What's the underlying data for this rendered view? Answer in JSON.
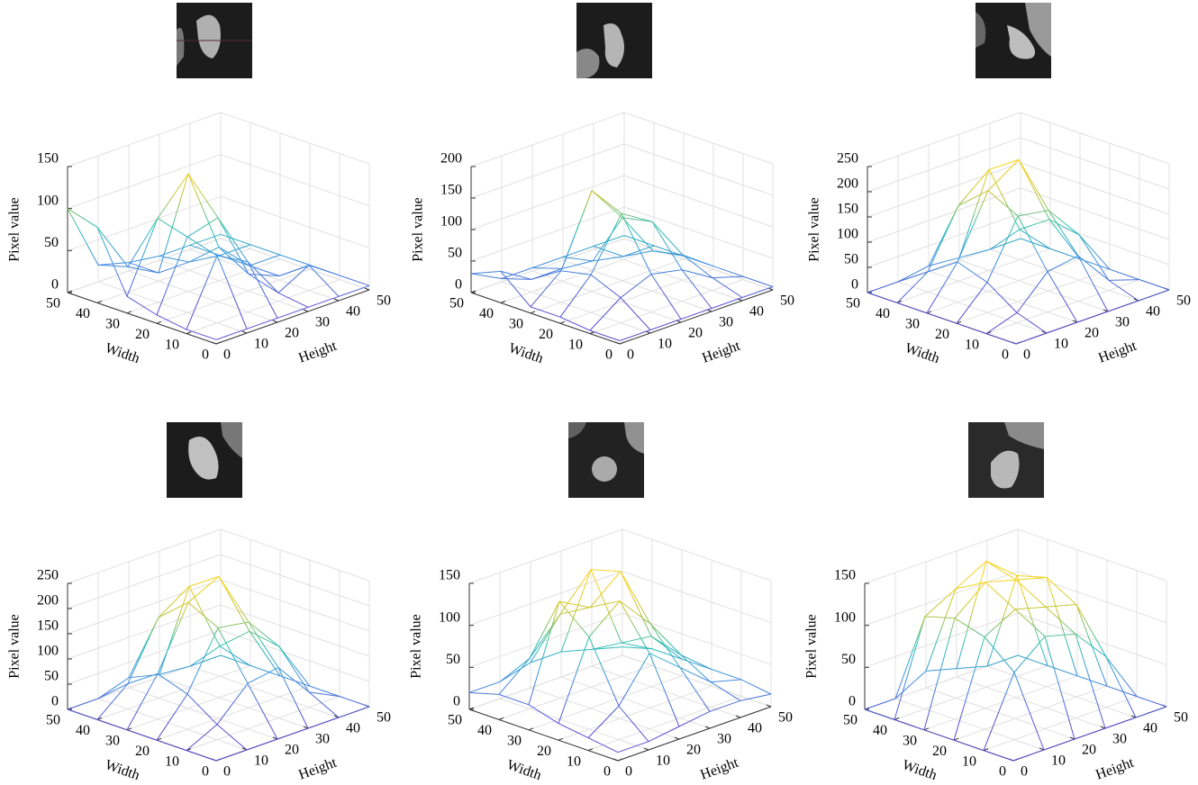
{
  "chart_data": [
    {
      "type": "surface",
      "xlabel": "Width",
      "ylabel": "Height",
      "zlabel": "Pixel value",
      "x": [
        0,
        10,
        20,
        30,
        40,
        50
      ],
      "y": [
        0,
        10,
        20,
        30,
        40,
        50
      ],
      "z": [
        [
          5,
          5,
          5,
          5,
          5,
          5
        ],
        [
          5,
          80,
          60,
          10,
          30,
          5
        ],
        [
          10,
          90,
          100,
          20,
          5,
          5
        ],
        [
          20,
          100,
          140,
          40,
          5,
          5
        ],
        [
          90,
          30,
          10,
          10,
          5,
          5
        ],
        [
          100,
          20,
          10,
          5,
          5,
          5
        ]
      ],
      "xlim": [
        0,
        50
      ],
      "ylim": [
        0,
        50
      ],
      "zlim": [
        0,
        150
      ],
      "xticks": [
        0,
        10,
        20,
        30,
        40,
        50
      ],
      "yticks": [
        0,
        10,
        20,
        30,
        40,
        50
      ],
      "zticks": [
        0,
        50,
        100,
        150
      ],
      "grid": true
    },
    {
      "type": "surface",
      "xlabel": "Width",
      "ylabel": "Height",
      "zlabel": "Pixel value",
      "x": [
        0,
        10,
        20,
        30,
        40,
        50
      ],
      "y": [
        0,
        10,
        20,
        30,
        40,
        50
      ],
      "z": [
        [
          5,
          5,
          5,
          5,
          5,
          5
        ],
        [
          5,
          40,
          60,
          50,
          20,
          5
        ],
        [
          10,
          60,
          140,
          110,
          40,
          5
        ],
        [
          10,
          50,
          160,
          100,
          30,
          5
        ],
        [
          50,
          20,
          20,
          15,
          5,
          5
        ],
        [
          30,
          5,
          5,
          5,
          5,
          5
        ]
      ],
      "xlim": [
        0,
        50
      ],
      "ylim": [
        0,
        50
      ],
      "zlim": [
        0,
        200
      ],
      "xticks": [
        0,
        10,
        20,
        30,
        40,
        50
      ],
      "yticks": [
        0,
        10,
        20,
        30,
        40,
        50
      ],
      "zticks": [
        0,
        50,
        100,
        150,
        200
      ],
      "grid": true
    },
    {
      "type": "surface",
      "xlabel": "Width",
      "ylabel": "Height",
      "zlabel": "Pixel value",
      "x": [
        0,
        10,
        20,
        30,
        40,
        50
      ],
      "y": [
        0,
        10,
        20,
        30,
        40,
        50
      ],
      "z": [
        [
          0,
          0,
          0,
          0,
          0,
          0
        ],
        [
          0,
          20,
          80,
          90,
          20,
          0
        ],
        [
          0,
          60,
          170,
          160,
          90,
          0
        ],
        [
          0,
          80,
          200,
          240,
          100,
          0
        ],
        [
          0,
          40,
          150,
          200,
          60,
          0
        ],
        [
          0,
          0,
          10,
          5,
          0,
          0
        ]
      ],
      "xlim": [
        0,
        50
      ],
      "ylim": [
        0,
        50
      ],
      "zlim": [
        0,
        250
      ],
      "xticks": [
        0,
        10,
        20,
        30,
        40,
        50
      ],
      "yticks": [
        0,
        10,
        20,
        30,
        40,
        50
      ],
      "zticks": [
        0,
        50,
        100,
        150,
        200,
        250
      ],
      "grid": true
    },
    {
      "type": "surface",
      "xlabel": "Width",
      "ylabel": "Height",
      "zlabel": "Pixel value",
      "x": [
        0,
        10,
        20,
        30,
        40,
        50
      ],
      "y": [
        0,
        10,
        20,
        30,
        40,
        50
      ],
      "z": [
        [
          0,
          0,
          0,
          0,
          0,
          0
        ],
        [
          0,
          30,
          90,
          100,
          30,
          0
        ],
        [
          0,
          70,
          180,
          170,
          100,
          0
        ],
        [
          0,
          90,
          210,
          240,
          110,
          0
        ],
        [
          0,
          50,
          160,
          200,
          60,
          0
        ],
        [
          0,
          0,
          20,
          5,
          0,
          0
        ]
      ],
      "xlim": [
        0,
        50
      ],
      "ylim": [
        0,
        50
      ],
      "zlim": [
        0,
        250
      ],
      "xticks": [
        0,
        10,
        20,
        30,
        40,
        50
      ],
      "yticks": [
        0,
        10,
        20,
        30,
        40,
        50
      ],
      "zticks": [
        0,
        50,
        100,
        150,
        200,
        250
      ],
      "grid": true
    },
    {
      "type": "surface",
      "xlabel": "Width",
      "ylabel": "Height",
      "zlabel": "Pixel value",
      "x": [
        0,
        10,
        20,
        30,
        40,
        50
      ],
      "y": [
        0,
        10,
        20,
        30,
        40,
        50
      ],
      "z": [
        [
          10,
          10,
          15,
          20,
          20,
          15
        ],
        [
          15,
          40,
          90,
          60,
          30,
          20
        ],
        [
          20,
          110,
          140,
          100,
          50,
          20
        ],
        [
          30,
          140,
          120,
          150,
          60,
          20
        ],
        [
          30,
          60,
          100,
          140,
          40,
          20
        ],
        [
          20,
          20,
          30,
          30,
          20,
          10
        ]
      ],
      "xlim": [
        0,
        50
      ],
      "ylim": [
        0,
        50
      ],
      "zlim": [
        0,
        150
      ],
      "xticks": [
        0,
        10,
        20,
        30,
        40,
        50
      ],
      "yticks": [
        0,
        10,
        20,
        30,
        40,
        50
      ],
      "zticks": [
        0,
        50,
        100,
        150
      ],
      "grid": true
    },
    {
      "type": "surface",
      "xlabel": "Width",
      "ylabel": "Height",
      "zlabel": "Pixel value",
      "x": [
        0,
        10,
        20,
        30,
        40,
        50
      ],
      "y": [
        0,
        10,
        20,
        30,
        40,
        50
      ],
      "z": [
        [
          0,
          0,
          0,
          0,
          0,
          0
        ],
        [
          0,
          80,
          110,
          100,
          60,
          0
        ],
        [
          0,
          110,
          130,
          120,
          110,
          0
        ],
        [
          0,
          120,
          150,
          140,
          130,
          0
        ],
        [
          0,
          110,
          130,
          150,
          120,
          0
        ],
        [
          0,
          0,
          20,
          10,
          0,
          0
        ]
      ],
      "xlim": [
        0,
        50
      ],
      "ylim": [
        0,
        50
      ],
      "zlim": [
        0,
        150
      ],
      "xticks": [
        0,
        10,
        20,
        30,
        40,
        50
      ],
      "yticks": [
        0,
        10,
        20,
        30,
        40,
        50
      ],
      "zticks": [
        0,
        50,
        100,
        150
      ],
      "grid": true
    }
  ]
}
